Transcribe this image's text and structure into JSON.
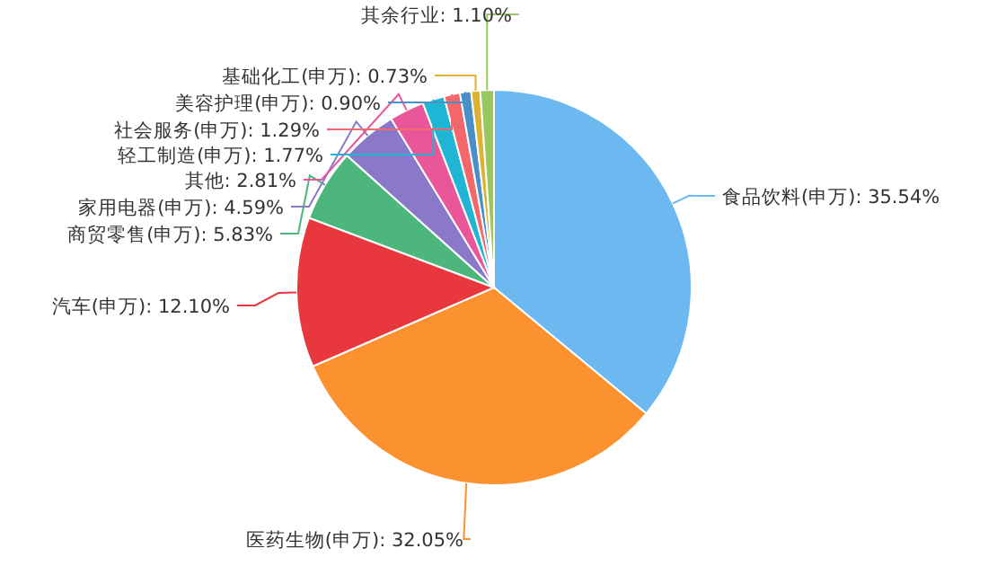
{
  "chart_data": {
    "type": "pie",
    "categories": [
      "食品饮料(申万)",
      "医药生物(申万)",
      "汽车(申万)",
      "商贸零售(申万)",
      "家用电器(申万)",
      "其他",
      "轻工制造(申万)",
      "社会服务(申万)",
      "美容护理(申万)",
      "基础化工(申万)",
      "其余行业"
    ],
    "values": [
      35.54,
      32.05,
      12.1,
      5.83,
      4.59,
      2.81,
      1.77,
      1.29,
      0.9,
      0.73,
      1.1
    ],
    "value_labels": [
      "35.54%",
      "32.05%",
      "12.10%",
      "5.83%",
      "4.59%",
      "2.81%",
      "1.77%",
      "1.29%",
      "0.90%",
      "0.73%",
      "1.10%"
    ],
    "colors": [
      "#6cb8f0",
      "#fb922f",
      "#e8383d",
      "#4cb67c",
      "#8a79c9",
      "#e9579a",
      "#1fb6d6",
      "#f4676a",
      "#4a90c8",
      "#e0b030",
      "#9bc762"
    ]
  }
}
